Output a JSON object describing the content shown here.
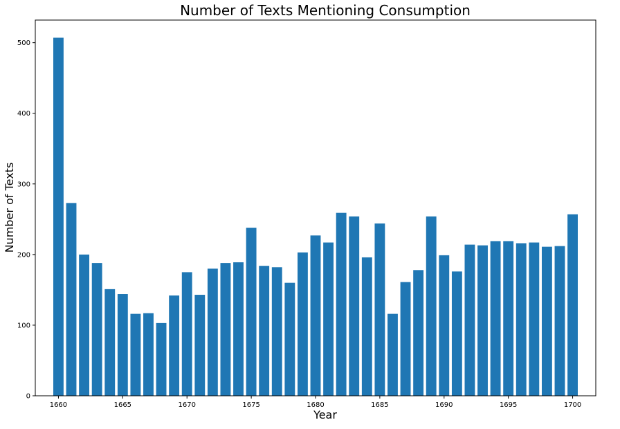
{
  "chart_data": {
    "type": "bar",
    "title": "Number of Texts Mentioning Consumption",
    "xlabel": "Year",
    "ylabel": "Number of Texts",
    "x": [
      1660,
      1661,
      1662,
      1663,
      1664,
      1665,
      1666,
      1667,
      1668,
      1669,
      1670,
      1671,
      1672,
      1673,
      1674,
      1675,
      1676,
      1677,
      1678,
      1679,
      1680,
      1681,
      1682,
      1683,
      1684,
      1685,
      1686,
      1687,
      1688,
      1689,
      1690,
      1691,
      1692,
      1693,
      1694,
      1695,
      1696,
      1697,
      1698,
      1699,
      1700
    ],
    "values": [
      507,
      273,
      200,
      188,
      151,
      144,
      116,
      117,
      103,
      142,
      175,
      143,
      180,
      188,
      189,
      238,
      184,
      182,
      160,
      203,
      227,
      217,
      259,
      254,
      196,
      244,
      116,
      161,
      178,
      254,
      199,
      176,
      214,
      213,
      219,
      219,
      216,
      217,
      211,
      212,
      257
    ],
    "xlim": [
      1658.2,
      1701.8
    ],
    "ylim": [
      0,
      532
    ],
    "xticks": [
      1660,
      1665,
      1670,
      1675,
      1680,
      1685,
      1690,
      1695,
      1700
    ],
    "yticks": [
      0,
      100,
      200,
      300,
      400,
      500
    ],
    "bar_color": "#1f77b4",
    "grid": false,
    "legend": "none"
  }
}
